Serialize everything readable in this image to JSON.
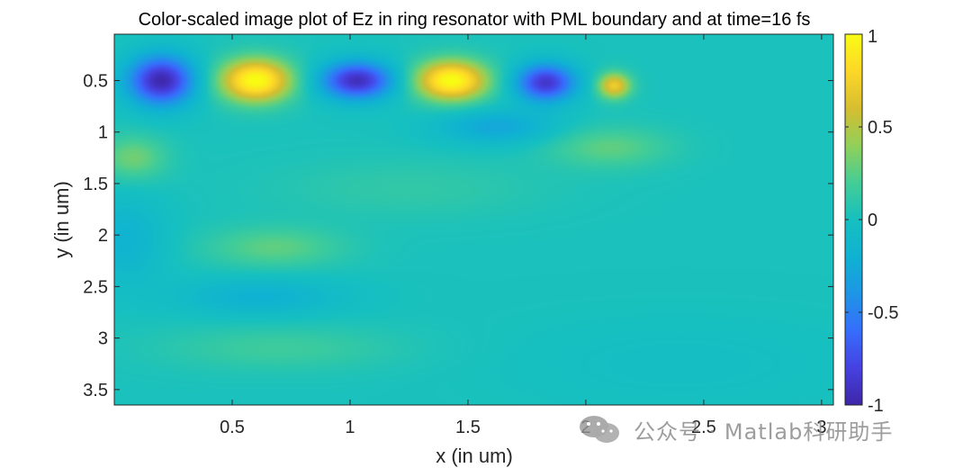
{
  "chart_data": {
    "type": "heatmap",
    "title": "Color-scaled image plot of Ez in ring resonator with PML boundary and at time=16 fs",
    "xlabel": "x (in um)",
    "ylabel": "y (in um)",
    "xlim": [
      0.0,
      3.05
    ],
    "ylim": [
      0.05,
      3.65
    ],
    "y_reversed": true,
    "x_ticks": [
      0.5,
      1,
      1.5,
      2,
      2.5,
      3
    ],
    "x_tick_labels": [
      "0.5",
      "1",
      "1.5",
      "2",
      "2.5",
      "3"
    ],
    "y_ticks": [
      0.5,
      1,
      1.5,
      2,
      2.5,
      3,
      3.5
    ],
    "y_tick_labels": [
      "0.5",
      "1",
      "1.5",
      "2",
      "2.5",
      "3",
      "3.5"
    ],
    "colorbar": {
      "colormap": "parula",
      "limits": [
        -1,
        1
      ],
      "ticks": [
        -1,
        -0.5,
        0,
        0.5,
        1
      ],
      "tick_labels": [
        "-1",
        "-0.5",
        "0",
        "0.5",
        "1"
      ]
    },
    "background_value": 0.02,
    "field_features": [
      {
        "x": 0.2,
        "y": 0.5,
        "value": -1.0,
        "sx": 0.1,
        "sy": 0.17
      },
      {
        "x": 0.6,
        "y": 0.5,
        "value": 1.0,
        "sx": 0.11,
        "sy": 0.15
      },
      {
        "x": 1.03,
        "y": 0.5,
        "value": -0.95,
        "sx": 0.11,
        "sy": 0.13
      },
      {
        "x": 1.43,
        "y": 0.5,
        "value": 1.0,
        "sx": 0.11,
        "sy": 0.14
      },
      {
        "x": 1.83,
        "y": 0.52,
        "value": -0.9,
        "sx": 0.09,
        "sy": 0.13
      },
      {
        "x": 1.62,
        "y": 0.95,
        "value": -0.3,
        "sx": 0.18,
        "sy": 0.12
      },
      {
        "x": 2.12,
        "y": 0.55,
        "value": 0.7,
        "sx": 0.05,
        "sy": 0.09
      },
      {
        "x": 2.1,
        "y": 1.15,
        "value": 0.25,
        "sx": 0.18,
        "sy": 0.14
      },
      {
        "x": 0.08,
        "y": 1.25,
        "value": 0.3,
        "sx": 0.1,
        "sy": 0.15
      },
      {
        "x": 0.05,
        "y": 2.05,
        "value": -0.2,
        "sx": 0.12,
        "sy": 0.3
      },
      {
        "x": 0.68,
        "y": 2.12,
        "value": 0.25,
        "sx": 0.2,
        "sy": 0.14
      },
      {
        "x": 0.62,
        "y": 2.6,
        "value": -0.22,
        "sx": 0.25,
        "sy": 0.13
      },
      {
        "x": 0.7,
        "y": 3.1,
        "value": 0.15,
        "sx": 0.35,
        "sy": 0.15
      },
      {
        "x": 1.25,
        "y": 1.55,
        "value": 0.1,
        "sx": 0.4,
        "sy": 0.2
      },
      {
        "x": 2.4,
        "y": 3.25,
        "value": -0.05,
        "sx": 0.5,
        "sy": 0.3
      }
    ]
  },
  "watermark": {
    "text": "公众号 · Matlab科研助手",
    "icon": "wechat-logo-icon"
  }
}
